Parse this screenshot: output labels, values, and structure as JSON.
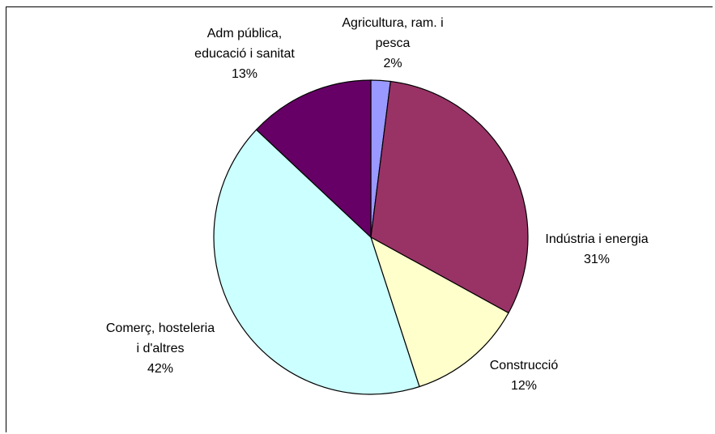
{
  "chart_data": {
    "type": "pie",
    "title": "",
    "slices": [
      {
        "label_lines": [
          "Agricultura, ram. i",
          "pesca"
        ],
        "value": 2,
        "value_label": "2%",
        "color": "#9999ff"
      },
      {
        "label_lines": [
          "Indústria i energia"
        ],
        "value": 31,
        "value_label": "31%",
        "color": "#993366"
      },
      {
        "label_lines": [
          "Construcció"
        ],
        "value": 12,
        "value_label": "12%",
        "color": "#ffffcc"
      },
      {
        "label_lines": [
          "Comerç, hosteleria",
          "i d'altres"
        ],
        "value": 42,
        "value_label": "42%",
        "color": "#ccffff"
      },
      {
        "label_lines": [
          "Adm pública,",
          "educació i sanitat"
        ],
        "value": 13,
        "value_label": "13%",
        "color": "#660066"
      }
    ],
    "start": "12 o'clock",
    "direction": "clockwise",
    "legend": "none"
  }
}
